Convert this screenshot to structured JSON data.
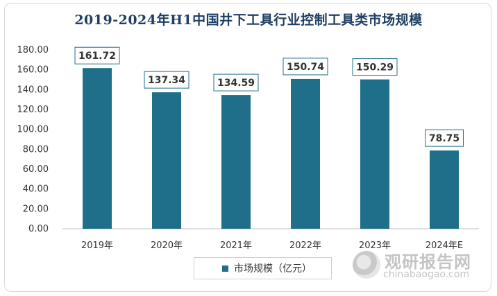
{
  "chart_data": {
    "type": "bar",
    "title": "2019-2024年H1中国井下工具行业控制工具类市场规模",
    "categories": [
      "2019年",
      "2020年",
      "2021年",
      "2022年",
      "2023年",
      "2024年E"
    ],
    "series": [
      {
        "name": "市场规模（亿元）",
        "values": [
          161.72,
          137.34,
          134.59,
          150.74,
          150.29,
          78.75
        ]
      }
    ],
    "value_labels": [
      "161.72",
      "137.34",
      "134.59",
      "150.74",
      "150.29",
      "78.75"
    ],
    "y_ticks": [
      "0.00",
      "20.00",
      "40.00",
      "60.00",
      "80.00",
      "100.00",
      "120.00",
      "140.00",
      "160.00",
      "180.00"
    ],
    "ylim": [
      0,
      180
    ],
    "xlabel": "",
    "ylabel": "",
    "legend_position": "bottom",
    "bar_color": "#1f6f8b"
  },
  "watermark": {
    "cn": "观研报告网",
    "en": "chinabaogao.com"
  }
}
